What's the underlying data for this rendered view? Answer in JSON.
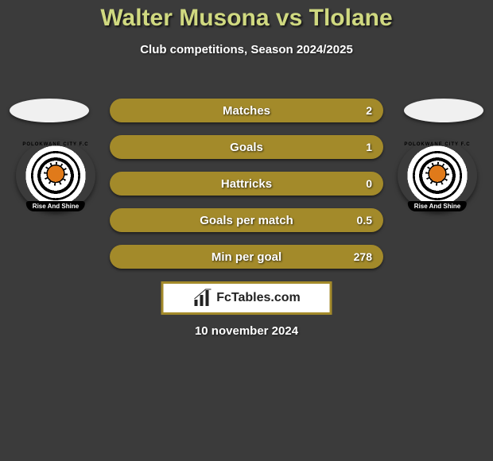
{
  "title": {
    "player1": "Walter Musona",
    "vs": "vs",
    "player2": "Tlolane",
    "color": "#d0d980"
  },
  "subtitle": "Club competitions, Season 2024/2025",
  "date": "10 november 2024",
  "brand": {
    "label": "FcTables.com",
    "border_color": "#a38a2a"
  },
  "badge": {
    "top_text": "POLOKWANE CITY F.C",
    "banner_text": "Rise And Shine"
  },
  "stats": {
    "bar_bg_color": "#a38a2a",
    "left_fill_color": "#a38a2a",
    "right_fill_color": "#a38a2a",
    "rows": [
      {
        "label": "Matches",
        "left": "",
        "right": "2",
        "left_pct": 0,
        "right_pct": 0
      },
      {
        "label": "Goals",
        "left": "",
        "right": "1",
        "left_pct": 0,
        "right_pct": 0
      },
      {
        "label": "Hattricks",
        "left": "",
        "right": "0",
        "left_pct": 0,
        "right_pct": 0
      },
      {
        "label": "Goals per match",
        "left": "",
        "right": "0.5",
        "left_pct": 0,
        "right_pct": 0
      },
      {
        "label": "Min per goal",
        "left": "",
        "right": "278",
        "left_pct": 0,
        "right_pct": 0
      }
    ]
  }
}
